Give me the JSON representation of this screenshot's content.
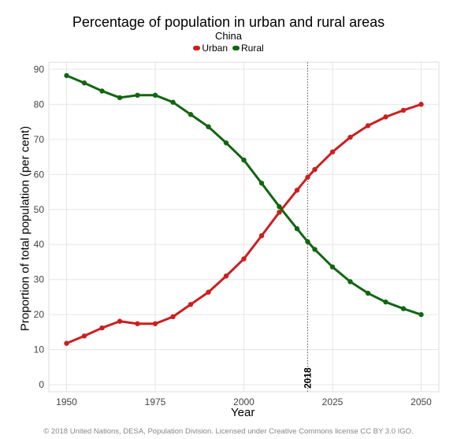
{
  "chart_data": {
    "type": "line",
    "title": "Percentage of population in urban and rural areas",
    "subtitle": "China",
    "xlabel": "Year",
    "ylabel": "Proportion of total population (per cent)",
    "x": [
      1950,
      1955,
      1960,
      1965,
      1970,
      1975,
      1980,
      1985,
      1990,
      1995,
      2000,
      2005,
      2010,
      2015,
      2018,
      2020,
      2025,
      2030,
      2035,
      2040,
      2045,
      2050
    ],
    "xlim": [
      1945,
      2055
    ],
    "ylim": [
      -2,
      92
    ],
    "xticks": [
      "1950",
      "1975",
      "2000",
      "2025",
      "2050"
    ],
    "yticks": [
      "0",
      "10",
      "20",
      "30",
      "40",
      "50",
      "60",
      "70",
      "80",
      "90"
    ],
    "series": [
      {
        "name": "Urban",
        "color": "#cc1f1f",
        "values": [
          11.8,
          13.9,
          16.2,
          18.1,
          17.4,
          17.4,
          19.4,
          22.9,
          26.4,
          31.0,
          35.9,
          42.5,
          49.2,
          55.5,
          59.2,
          61.4,
          66.4,
          70.6,
          73.9,
          76.4,
          78.3,
          80.0
        ]
      },
      {
        "name": "Rural",
        "color": "#116611",
        "values": [
          88.2,
          86.1,
          83.8,
          81.9,
          82.6,
          82.6,
          80.6,
          77.1,
          73.6,
          69.0,
          64.1,
          57.5,
          50.8,
          44.5,
          40.8,
          38.6,
          33.6,
          29.4,
          26.1,
          23.6,
          21.7,
          20.0
        ]
      }
    ],
    "annotation": {
      "x": 2018,
      "label": "2018"
    },
    "grid": true,
    "legend_position": "top-center"
  },
  "footer": "© 2018 United Nations, DESA, Population Division. Licensed under Creative Commons license CC BY 3.0 IGO."
}
